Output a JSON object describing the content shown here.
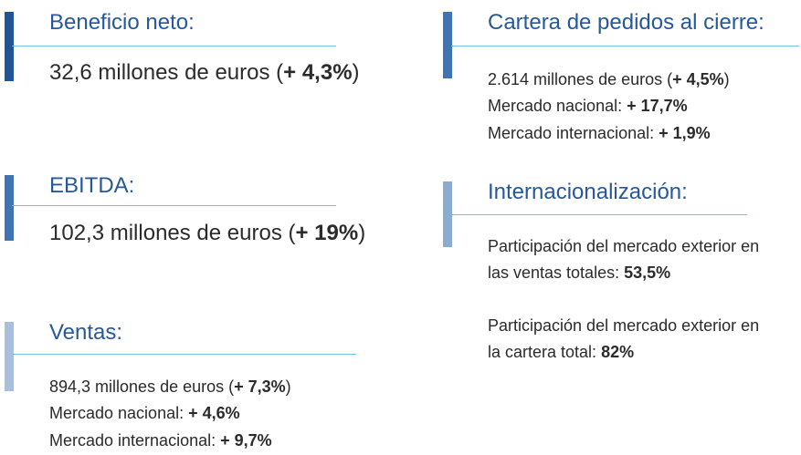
{
  "colors": {
    "bar_dark": "#1f5497",
    "bar_mid": "#3f73b2",
    "bar_light": "#8cabd1",
    "bar_pale": "#a9bfdb",
    "title_blue": "#27589b",
    "rule_cyan": "#6fc3df"
  },
  "beneficio": {
    "title": "Beneficio neto:",
    "value_prefix": "32,6 millones de euros (",
    "value_bold": "+ 4,3%",
    "value_suffix": ")"
  },
  "ebitda": {
    "title": "EBITDA:",
    "value_prefix": "102,3 millones de euros (",
    "value_bold": "+ 19%",
    "value_suffix": ")"
  },
  "ventas": {
    "title": "Ventas:",
    "line1_prefix": "894,3 millones de euros (",
    "line1_bold": "+ 7,3%",
    "line1_suffix": ")",
    "line2_prefix": "Mercado nacional: ",
    "line2_bold": "+ 4,6%",
    "line3_prefix": "Mercado internacional: ",
    "line3_bold": "+ 9,7%"
  },
  "cartera": {
    "title": "Cartera de pedidos al cierre:",
    "line1_prefix": "2.614 millones de euros (",
    "line1_bold": "+ 4,5%",
    "line1_suffix": ")",
    "line2_prefix": "Mercado nacional: ",
    "line2_bold": "+ 17,7%",
    "line3_prefix": "Mercado internacional: ",
    "line3_bold": "+ 1,9%"
  },
  "internacional": {
    "title": "Internacionalización:",
    "p1_line1": "Participación del mercado exterior en",
    "p1_line2_prefix": "las ventas totales: ",
    "p1_line2_bold": "53,5%",
    "p2_line1": "Participación del mercado exterior en",
    "p2_line2_prefix": "la cartera total: ",
    "p2_line2_bold": "82%"
  }
}
